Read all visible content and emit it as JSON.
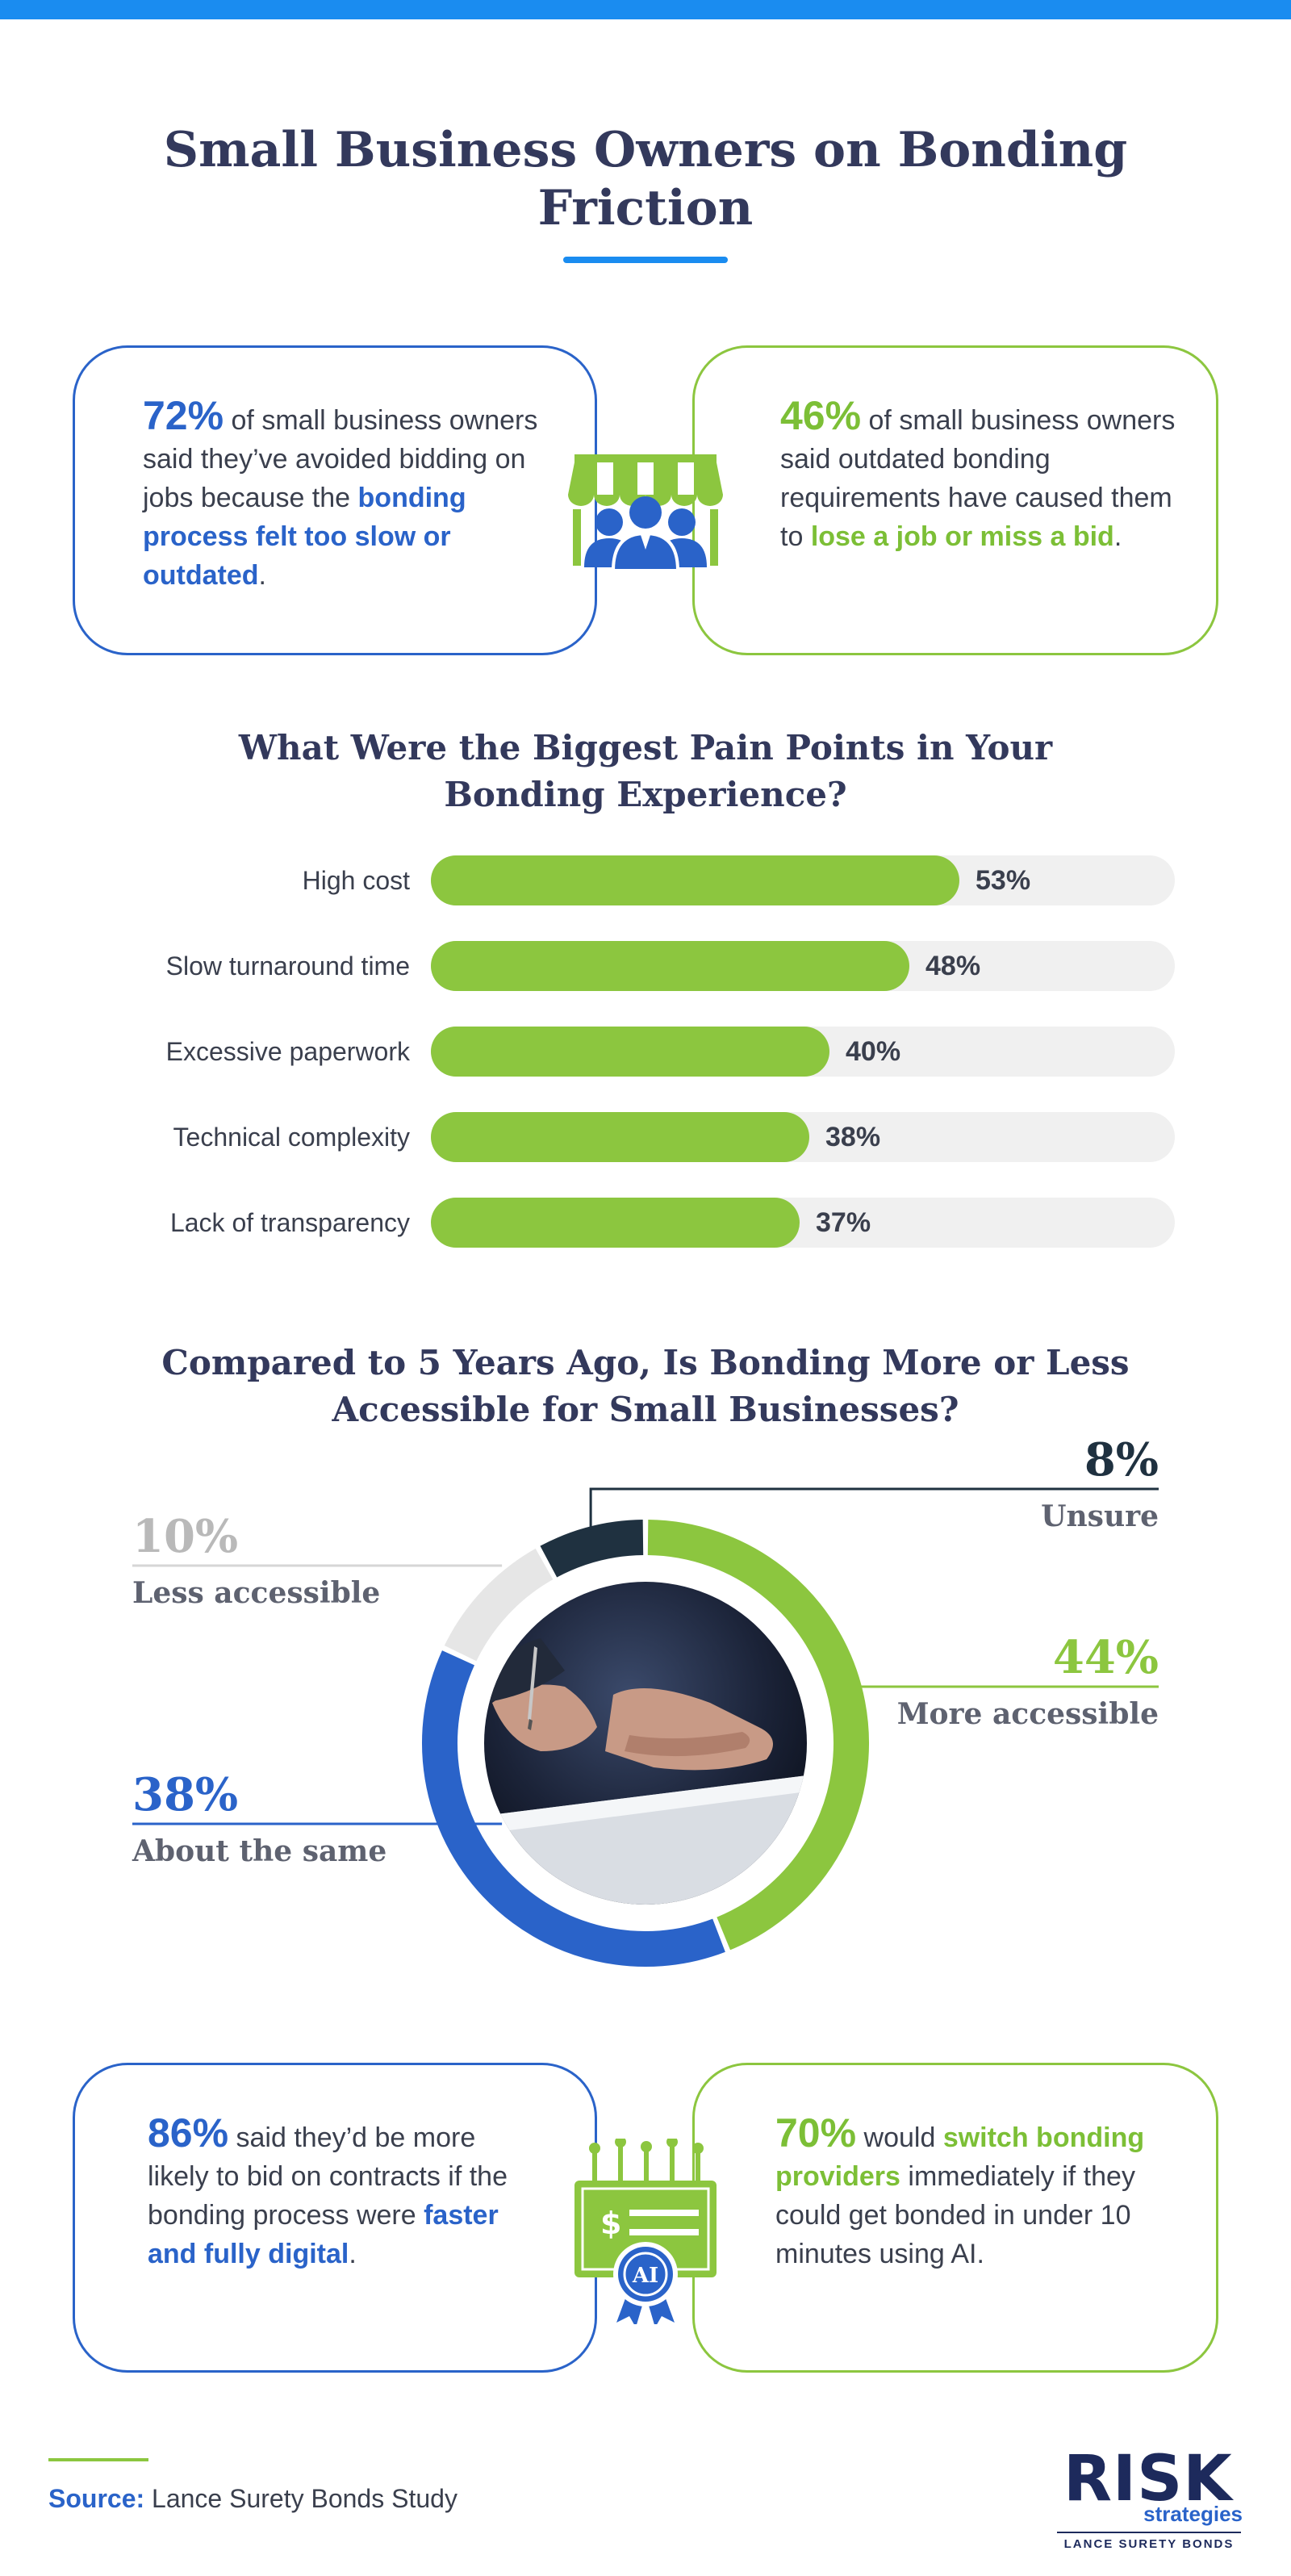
{
  "title": "Small Business Owners on Bonding Friction",
  "stat_cards_top": [
    {
      "pct": "72%",
      "pre": " of small business owners said they’ve avoided bidding on jobs because the ",
      "highlight": "bonding process felt too slow or outdated",
      "post": ".",
      "accent": "#2a63c9"
    },
    {
      "pct": "46%",
      "pre": " of small business owners said outdated bonding requirements have caused them to ",
      "highlight": "lose a job or miss a bid",
      "post": ".",
      "accent": "#8cc63f"
    }
  ],
  "icons": {
    "top_center": "storefront-people-icon",
    "bottom_center": "certificate-ai-icon",
    "bottom_badge_text": "AI",
    "bottom_currency": "$"
  },
  "chart_data": [
    {
      "type": "bar",
      "orientation": "horizontal",
      "title": "What Were the Biggest Pain Points in Your Bonding Experience?",
      "categories": [
        "High cost",
        "Slow turnaround time",
        "Excessive paperwork",
        "Technical complexity",
        "Lack of transparency"
      ],
      "values": [
        53,
        48,
        40,
        38,
        37
      ],
      "value_labels": [
        "53%",
        "48%",
        "40%",
        "38%",
        "37%"
      ],
      "xlim": [
        0,
        100
      ],
      "bar_color": "#8cc63f",
      "track_color": "#f0f0f0"
    },
    {
      "type": "pie",
      "style": "donut",
      "title": "Compared to 5 Years Ago, Is Bonding More or Less Accessible for Small Businesses?",
      "slices": [
        {
          "label": "More accessible",
          "value": 44,
          "value_label": "44%",
          "color": "#8cc63f"
        },
        {
          "label": "About the same",
          "value": 38,
          "value_label": "38%",
          "color": "#2a63c9"
        },
        {
          "label": "Less accessible",
          "value": 10,
          "value_label": "10%",
          "color": "#e6e6e6"
        },
        {
          "label": "Unsure",
          "value": 8,
          "value_label": "8%",
          "color": "#1f3140"
        }
      ]
    }
  ],
  "stat_cards_bottom": [
    {
      "pct": "86%",
      "pre": " said they’d be more likely to bid on contracts if the bonding process were ",
      "highlight": "faster and fully digital",
      "post": ".",
      "accent": "#2a63c9"
    },
    {
      "pct": "70%",
      "mid": " would ",
      "highlight": "switch bonding providers",
      "post": " immediately if they could get bonded in under 10 minutes using AI.",
      "accent": "#8cc63f"
    }
  ],
  "source": {
    "label": "Source:",
    "text": " Lance Surety Bonds Study"
  },
  "logo": {
    "main": "RISK",
    "sub": "strategies",
    "tagline": "LANCE SURETY BONDS"
  }
}
